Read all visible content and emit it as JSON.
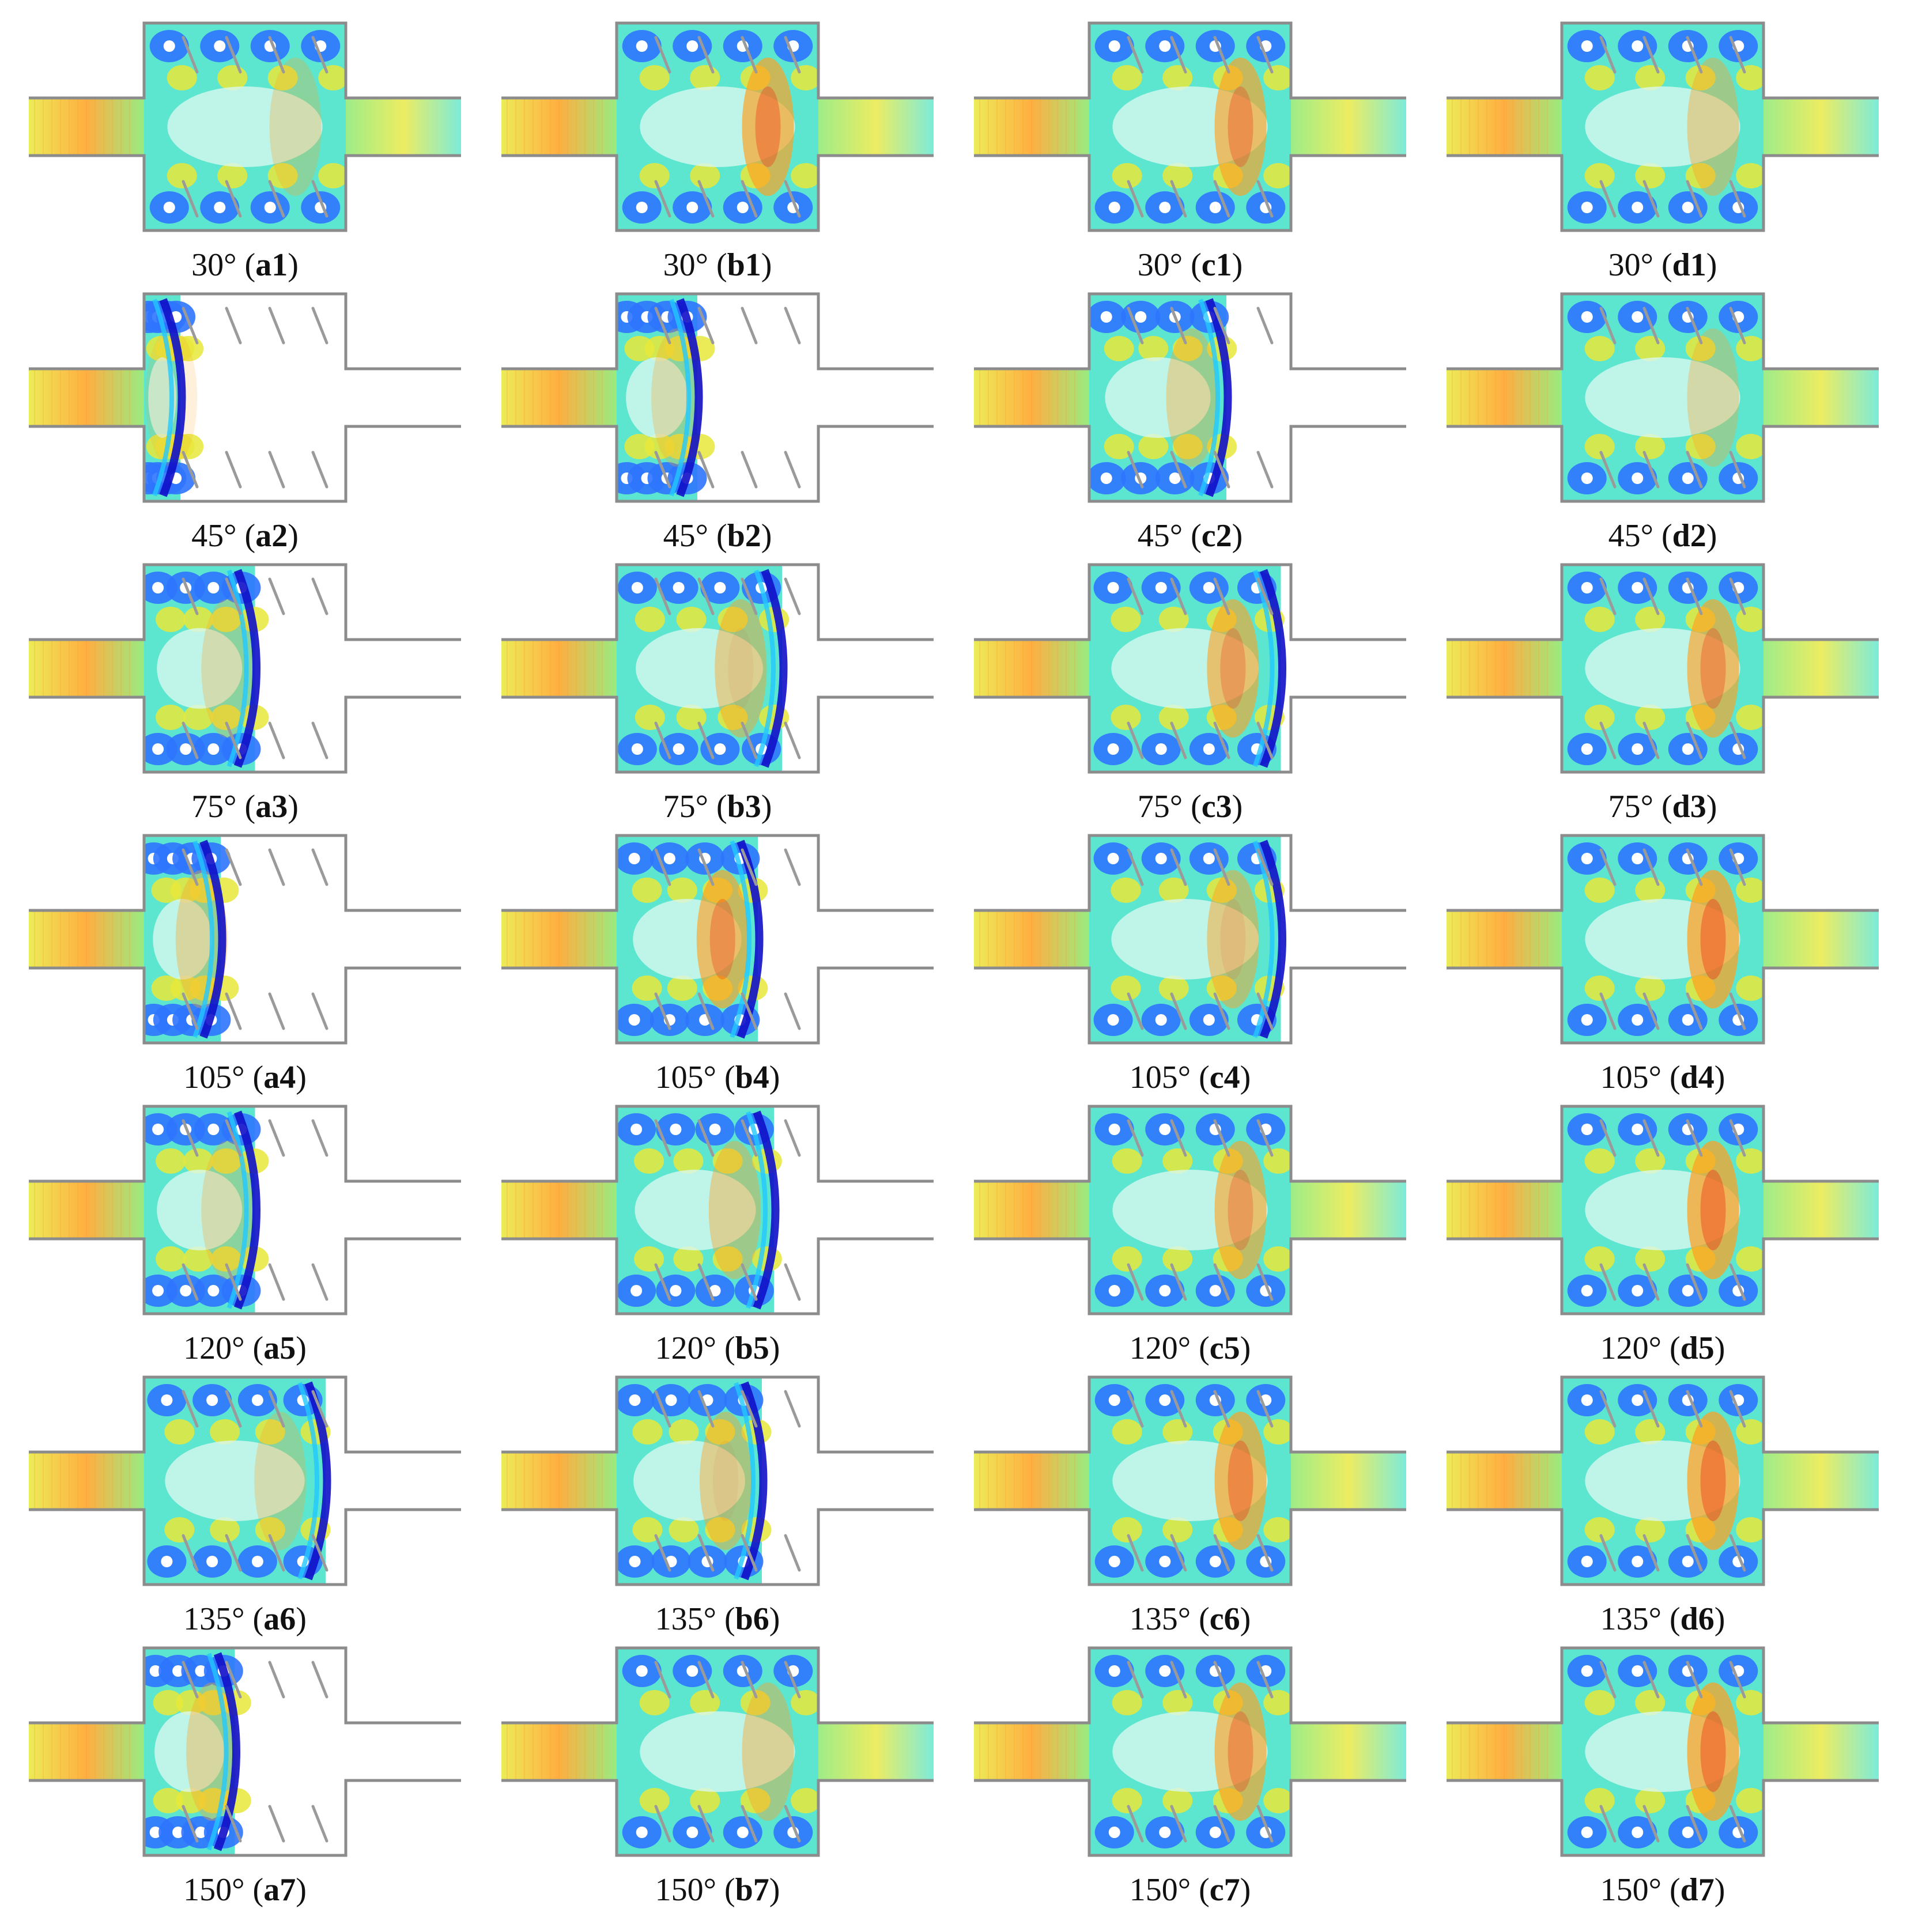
{
  "figure": {
    "columns": [
      "a",
      "b",
      "c",
      "d"
    ],
    "angles": [
      "30°",
      "45°",
      "75°",
      "105°",
      "120°",
      "135°",
      "150°"
    ],
    "panels": [
      {
        "angle": "30°",
        "id": "a1",
        "progress": 1.0,
        "hot": 0.35
      },
      {
        "angle": "30°",
        "id": "b1",
        "progress": 1.0,
        "hot": 0.85
      },
      {
        "angle": "30°",
        "id": "c1",
        "progress": 1.0,
        "hot": 0.8
      },
      {
        "angle": "30°",
        "id": "d1",
        "progress": 1.0,
        "hot": 0.5
      },
      {
        "angle": "45°",
        "id": "a2",
        "progress": 0.18,
        "hot": 0.2
      },
      {
        "angle": "45°",
        "id": "b2",
        "progress": 0.4,
        "hot": 0.35
      },
      {
        "angle": "45°",
        "id": "c2",
        "progress": 0.68,
        "hot": 0.45
      },
      {
        "angle": "45°",
        "id": "d2",
        "progress": 1.0,
        "hot": 0.4
      },
      {
        "angle": "75°",
        "id": "a3",
        "progress": 0.55,
        "hot": 0.35
      },
      {
        "angle": "75°",
        "id": "b3",
        "progress": 0.82,
        "hot": 0.55
      },
      {
        "angle": "75°",
        "id": "c3",
        "progress": 0.95,
        "hot": 0.75
      },
      {
        "angle": "75°",
        "id": "d3",
        "progress": 1.0,
        "hot": 0.8
      },
      {
        "angle": "105°",
        "id": "a4",
        "progress": 0.38,
        "hot": 0.45
      },
      {
        "angle": "105°",
        "id": "b4",
        "progress": 0.7,
        "hot": 0.8
      },
      {
        "angle": "105°",
        "id": "c4",
        "progress": 0.95,
        "hot": 0.6
      },
      {
        "angle": "105°",
        "id": "d4",
        "progress": 1.0,
        "hot": 0.9
      },
      {
        "angle": "120°",
        "id": "a5",
        "progress": 0.55,
        "hot": 0.35
      },
      {
        "angle": "120°",
        "id": "b5",
        "progress": 0.78,
        "hot": 0.5
      },
      {
        "angle": "120°",
        "id": "c5",
        "progress": 1.0,
        "hot": 0.75
      },
      {
        "angle": "120°",
        "id": "d5",
        "progress": 1.0,
        "hot": 0.9
      },
      {
        "angle": "135°",
        "id": "a6",
        "progress": 0.9,
        "hot": 0.35
      },
      {
        "angle": "135°",
        "id": "b6",
        "progress": 0.72,
        "hot": 0.55
      },
      {
        "angle": "135°",
        "id": "c6",
        "progress": 1.0,
        "hot": 0.85
      },
      {
        "angle": "135°",
        "id": "d6",
        "progress": 1.0,
        "hot": 0.9
      },
      {
        "angle": "150°",
        "id": "a7",
        "progress": 0.45,
        "hot": 0.45
      },
      {
        "angle": "150°",
        "id": "b7",
        "progress": 1.0,
        "hot": 0.5
      },
      {
        "angle": "150°",
        "id": "c7",
        "progress": 1.0,
        "hot": 0.8
      },
      {
        "angle": "150°",
        "id": "d7",
        "progress": 1.0,
        "hot": 0.9
      }
    ]
  },
  "colors": {
    "wall": "#8c8c8c",
    "baffle": "#9a9a9a",
    "contour_scale": [
      "#1010c8",
      "#2f74ff",
      "#22c8ff",
      "#5ce6d0",
      "#86e86b",
      "#e8e83a",
      "#ffa020",
      "#f02d12"
    ],
    "text": "#111111"
  }
}
